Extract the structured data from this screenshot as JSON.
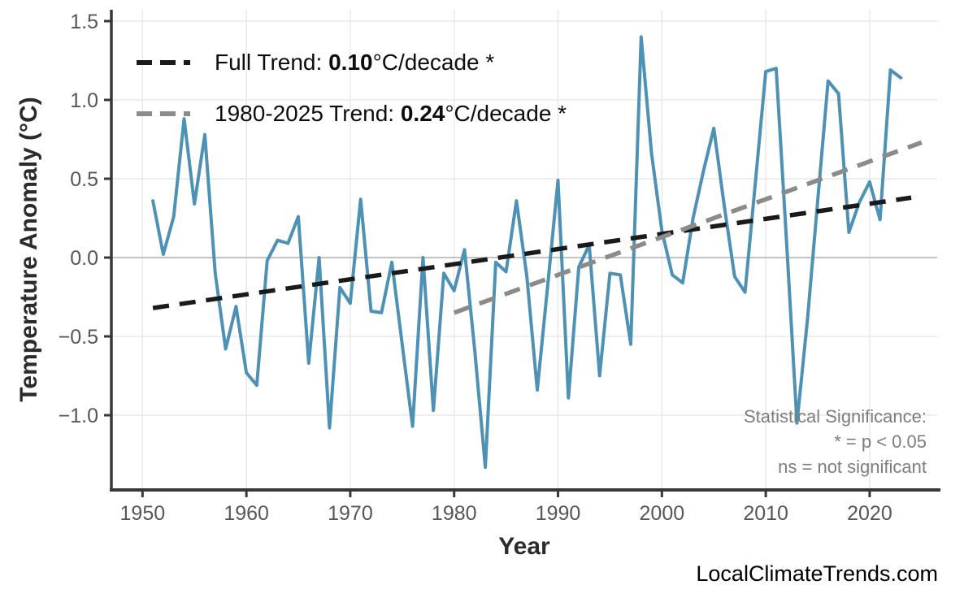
{
  "axes": {
    "x_title": "Year",
    "y_title": "Temperature Anomaly (°C)",
    "x_ticks": [
      {
        "value": 1950,
        "label": "1950"
      },
      {
        "value": 1960,
        "label": "1960"
      },
      {
        "value": 1970,
        "label": "1970"
      },
      {
        "value": 1980,
        "label": "1980"
      },
      {
        "value": 1990,
        "label": "1990"
      },
      {
        "value": 2000,
        "label": "2000"
      },
      {
        "value": 2010,
        "label": "2010"
      },
      {
        "value": 2020,
        "label": "2020"
      }
    ],
    "y_ticks": [
      {
        "value": 1.5,
        "label": "1.5"
      },
      {
        "value": 1.0,
        "label": "1.0"
      },
      {
        "value": 0.5,
        "label": "0.5"
      },
      {
        "value": 0.0,
        "label": "0.0"
      },
      {
        "value": -0.5,
        "label": "−0.5"
      },
      {
        "value": -1.0,
        "label": "−1.0"
      }
    ]
  },
  "legend": {
    "items": [
      {
        "pre": "Full Trend: ",
        "value": "0.10",
        "post": "°C/decade *",
        "color": "#1a1a1a"
      },
      {
        "pre": "1980-2025 Trend: ",
        "value": "0.24",
        "post": "°C/decade *",
        "color": "#8b8b8b"
      }
    ]
  },
  "annotation": {
    "lines": [
      "Statistical Significance:",
      "* = p < 0.05",
      "ns = not significant"
    ]
  },
  "watermark": "LocalClimateTrends.com",
  "colors": {
    "series_blue": "#4d91b4",
    "trend_full": "#1a1a1a",
    "trend_recent": "#8b8b8b",
    "grid": "#e8e8e8",
    "zero_line": "#c3c3c3",
    "spine": "#383838",
    "tick_label": "#565656",
    "axis_title": "#2b2b2b",
    "annotation_text": "#7d7d7d",
    "legend_text": "#0d0d0d",
    "watermark_text": "#000000"
  },
  "chart_data": {
    "type": "line",
    "title": "",
    "xlabel": "Year",
    "ylabel": "Temperature Anomaly (°C)",
    "x_axis_range": [
      1947.0,
      2026.5
    ],
    "ylim": [
      -1.474,
      1.572
    ],
    "grid": true,
    "legend_position": "top-left",
    "series": [
      {
        "name": "annual_temperature_anomaly",
        "color": "#4d91b4",
        "style": "solid",
        "x": [
          1951,
          1952,
          1953,
          1954,
          1955,
          1956,
          1957,
          1958,
          1959,
          1960,
          1961,
          1962,
          1963,
          1964,
          1965,
          1966,
          1967,
          1968,
          1969,
          1970,
          1971,
          1972,
          1973,
          1974,
          1975,
          1976,
          1977,
          1978,
          1979,
          1980,
          1981,
          1982,
          1983,
          1984,
          1985,
          1986,
          1987,
          1988,
          1989,
          1990,
          1991,
          1992,
          1993,
          1994,
          1995,
          1996,
          1997,
          1998,
          1999,
          2000,
          2001,
          2002,
          2003,
          2004,
          2005,
          2006,
          2007,
          2008,
          2009,
          2010,
          2011,
          2012,
          2013,
          2014,
          2015,
          2016,
          2017,
          2018,
          2019,
          2020,
          2021,
          2022,
          2023
        ],
        "values": [
          0.36,
          0.02,
          0.26,
          0.88,
          0.34,
          0.78,
          -0.1,
          -0.58,
          -0.31,
          -0.73,
          -0.81,
          -0.02,
          0.11,
          0.09,
          0.26,
          -0.67,
          0.0,
          -1.08,
          -0.19,
          -0.29,
          0.37,
          -0.34,
          -0.35,
          -0.03,
          -0.55,
          -1.07,
          0.0,
          -0.97,
          -0.1,
          -0.21,
          0.05,
          -0.6,
          -1.33,
          -0.03,
          -0.09,
          0.36,
          -0.12,
          -0.84,
          -0.18,
          0.49,
          -0.89,
          -0.06,
          0.08,
          -0.75,
          -0.1,
          -0.11,
          -0.55,
          1.4,
          0.66,
          0.17,
          -0.11,
          -0.16,
          0.25,
          0.55,
          0.82,
          0.33,
          -0.12,
          -0.22,
          0.48,
          1.18,
          1.2,
          0.1,
          -1.05,
          -0.4,
          0.36,
          1.12,
          1.04,
          0.16,
          0.35,
          0.48,
          0.24,
          1.19,
          1.14
        ]
      },
      {
        "name": "full-trend",
        "label": "Full Trend: 0.10°C/decade *",
        "color": "#1a1a1a",
        "style": "dashed",
        "slope_c_per_decade": 0.1,
        "x": [
          1951,
          2024
        ],
        "values": [
          -0.32,
          0.38
        ]
      },
      {
        "name": "trend-1980-2025",
        "label": "1980-2025 Trend: 0.24°C/decade *",
        "color": "#8b8b8b",
        "style": "dashed",
        "slope_c_per_decade": 0.24,
        "x": [
          1980,
          2025
        ],
        "values": [
          -0.35,
          0.73
        ]
      }
    ]
  }
}
